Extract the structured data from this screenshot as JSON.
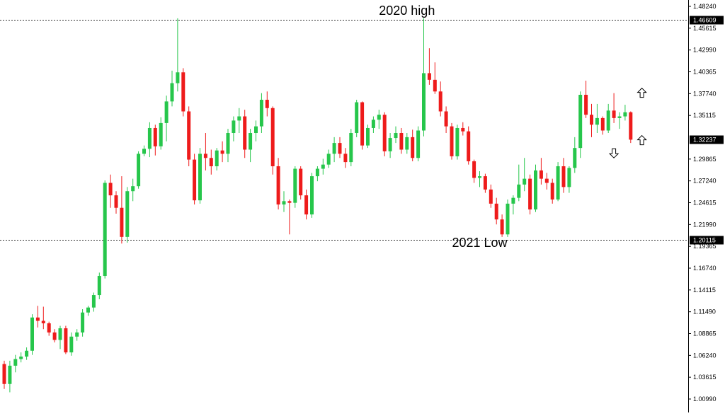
{
  "chart_data": {
    "type": "candlestick",
    "ylim": [
      1.0099,
      1.4824
    ],
    "y_ticks": [
      "1.48240",
      "1.45615",
      "1.42990",
      "1.40365",
      "1.37740",
      "1.35115",
      "1.29865",
      "1.27240",
      "1.24615",
      "1.21990",
      "1.19365",
      "1.16740",
      "1.14115",
      "1.11490",
      "1.08865",
      "1.06240",
      "1.03615",
      "1.00990"
    ],
    "levels": [
      {
        "value": 1.46609,
        "label": "1.46609",
        "style": "dotted"
      },
      {
        "value": 1.20115,
        "label": "1.20115",
        "style": "dotted"
      }
    ],
    "current_price": {
      "value": 1.32237,
      "label": "1.32237"
    },
    "annotations": [
      {
        "text": "2020 high",
        "x_index": 72,
        "y": 1.472
      },
      {
        "text": "2021 Low",
        "x_index": 85,
        "y": 1.193
      }
    ],
    "arrows": [
      {
        "direction": "up",
        "x_index": 114,
        "y": 1.378
      },
      {
        "direction": "up",
        "x_index": 114,
        "y": 1.321
      },
      {
        "direction": "down",
        "x_index": 109,
        "y": 1.306
      }
    ],
    "colors": {
      "up": "#26c64b",
      "down": "#ee1b1b",
      "level": "#333333",
      "label_bg": "#000000",
      "grid": "#ffffff"
    },
    "candles": [
      [
        1.052,
        1.056,
        1.022,
        1.028
      ],
      [
        1.028,
        1.056,
        1.018,
        1.05
      ],
      [
        1.05,
        1.063,
        1.042,
        1.058
      ],
      [
        1.058,
        1.066,
        1.054,
        1.061
      ],
      [
        1.061,
        1.072,
        1.057,
        1.068
      ],
      [
        1.068,
        1.112,
        1.063,
        1.108
      ],
      [
        1.108,
        1.122,
        1.096,
        1.104
      ],
      [
        1.104,
        1.121,
        1.094,
        1.101
      ],
      [
        1.101,
        1.103,
        1.086,
        1.09
      ],
      [
        1.09,
        1.094,
        1.078,
        1.081
      ],
      [
        1.081,
        1.098,
        1.07,
        1.095
      ],
      [
        1.095,
        1.098,
        1.064,
        1.066
      ],
      [
        1.066,
        1.09,
        1.062,
        1.085
      ],
      [
        1.085,
        1.094,
        1.08,
        1.09
      ],
      [
        1.09,
        1.118,
        1.085,
        1.114
      ],
      [
        1.114,
        1.122,
        1.11,
        1.12
      ],
      [
        1.12,
        1.138,
        1.115,
        1.135
      ],
      [
        1.135,
        1.162,
        1.13,
        1.158
      ],
      [
        1.158,
        1.273,
        1.155,
        1.27
      ],
      [
        1.27,
        1.28,
        1.24,
        1.255
      ],
      [
        1.255,
        1.26,
        1.233,
        1.24
      ],
      [
        1.24,
        1.278,
        1.197,
        1.205
      ],
      [
        1.205,
        1.265,
        1.198,
        1.26
      ],
      [
        1.26,
        1.275,
        1.248,
        1.266
      ],
      [
        1.266,
        1.308,
        1.263,
        1.305
      ],
      [
        1.305,
        1.315,
        1.302,
        1.311
      ],
      [
        1.311,
        1.343,
        1.301,
        1.336
      ],
      [
        1.336,
        1.34,
        1.303,
        1.314
      ],
      [
        1.314,
        1.349,
        1.31,
        1.342
      ],
      [
        1.342,
        1.375,
        1.32,
        1.368
      ],
      [
        1.368,
        1.405,
        1.362,
        1.39
      ],
      [
        1.39,
        1.468,
        1.38,
        1.403
      ],
      [
        1.403,
        1.408,
        1.35,
        1.356
      ],
      [
        1.356,
        1.362,
        1.29,
        1.298
      ],
      [
        1.298,
        1.305,
        1.244,
        1.249
      ],
      [
        1.249,
        1.312,
        1.245,
        1.305
      ],
      [
        1.305,
        1.33,
        1.285,
        1.3
      ],
      [
        1.3,
        1.31,
        1.28,
        1.29
      ],
      [
        1.29,
        1.312,
        1.285,
        1.309
      ],
      [
        1.309,
        1.32,
        1.295,
        1.305
      ],
      [
        1.305,
        1.335,
        1.295,
        1.33
      ],
      [
        1.33,
        1.35,
        1.32,
        1.345
      ],
      [
        1.345,
        1.36,
        1.33,
        1.35
      ],
      [
        1.35,
        1.358,
        1.3,
        1.31
      ],
      [
        1.31,
        1.335,
        1.295,
        1.33
      ],
      [
        1.33,
        1.345,
        1.32,
        1.338
      ],
      [
        1.338,
        1.378,
        1.33,
        1.37
      ],
      [
        1.37,
        1.38,
        1.35,
        1.36
      ],
      [
        1.36,
        1.362,
        1.28,
        1.29
      ],
      [
        1.29,
        1.3,
        1.238,
        1.244
      ],
      [
        1.244,
        1.26,
        1.235,
        1.248
      ],
      [
        1.248,
        1.25,
        1.208,
        1.246
      ],
      [
        1.246,
        1.29,
        1.24,
        1.287
      ],
      [
        1.287,
        1.29,
        1.25,
        1.255
      ],
      [
        1.255,
        1.262,
        1.226,
        1.232
      ],
      [
        1.232,
        1.282,
        1.228,
        1.278
      ],
      [
        1.278,
        1.29,
        1.272,
        1.287
      ],
      [
        1.287,
        1.299,
        1.28,
        1.292
      ],
      [
        1.292,
        1.31,
        1.288,
        1.305
      ],
      [
        1.305,
        1.325,
        1.295,
        1.318
      ],
      [
        1.318,
        1.325,
        1.3,
        1.305
      ],
      [
        1.305,
        1.312,
        1.288,
        1.295
      ],
      [
        1.295,
        1.335,
        1.29,
        1.33
      ],
      [
        1.33,
        1.37,
        1.325,
        1.367
      ],
      [
        1.367,
        1.368,
        1.31,
        1.315
      ],
      [
        1.315,
        1.34,
        1.312,
        1.336
      ],
      [
        1.336,
        1.35,
        1.33,
        1.346
      ],
      [
        1.346,
        1.358,
        1.335,
        1.352
      ],
      [
        1.352,
        1.355,
        1.302,
        1.308
      ],
      [
        1.308,
        1.33,
        1.3,
        1.324
      ],
      [
        1.324,
        1.338,
        1.318,
        1.33
      ],
      [
        1.33,
        1.336,
        1.305,
        1.31
      ],
      [
        1.31,
        1.33,
        1.305,
        1.325
      ],
      [
        1.325,
        1.334,
        1.296,
        1.3
      ],
      [
        1.3,
        1.338,
        1.296,
        1.333
      ],
      [
        1.333,
        1.468,
        1.326,
        1.402
      ],
      [
        1.402,
        1.432,
        1.388,
        1.394
      ],
      [
        1.394,
        1.415,
        1.377,
        1.38
      ],
      [
        1.38,
        1.392,
        1.35,
        1.356
      ],
      [
        1.356,
        1.362,
        1.33,
        1.338
      ],
      [
        1.338,
        1.342,
        1.298,
        1.302
      ],
      [
        1.302,
        1.34,
        1.298,
        1.336
      ],
      [
        1.336,
        1.343,
        1.327,
        1.332
      ],
      [
        1.332,
        1.338,
        1.292,
        1.296
      ],
      [
        1.296,
        1.298,
        1.27,
        1.276
      ],
      [
        1.276,
        1.284,
        1.265,
        1.278
      ],
      [
        1.278,
        1.281,
        1.258,
        1.262
      ],
      [
        1.262,
        1.268,
        1.24,
        1.245
      ],
      [
        1.245,
        1.252,
        1.22,
        1.226
      ],
      [
        1.226,
        1.232,
        1.205,
        1.208
      ],
      [
        1.208,
        1.25,
        1.205,
        1.245
      ],
      [
        1.245,
        1.255,
        1.232,
        1.252
      ],
      [
        1.252,
        1.292,
        1.248,
        1.268
      ],
      [
        1.268,
        1.3,
        1.26,
        1.275
      ],
      [
        1.275,
        1.28,
        1.232,
        1.238
      ],
      [
        1.238,
        1.292,
        1.235,
        1.285
      ],
      [
        1.285,
        1.3,
        1.268,
        1.275
      ],
      [
        1.275,
        1.282,
        1.262,
        1.27
      ],
      [
        1.27,
        1.275,
        1.245,
        1.25
      ],
      [
        1.25,
        1.295,
        1.248,
        1.29
      ],
      [
        1.29,
        1.3,
        1.258,
        1.265
      ],
      [
        1.265,
        1.29,
        1.258,
        1.288
      ],
      [
        1.288,
        1.325,
        1.282,
        1.312
      ],
      [
        1.312,
        1.38,
        1.3,
        1.376
      ],
      [
        1.376,
        1.393,
        1.348,
        1.352
      ],
      [
        1.352,
        1.365,
        1.325,
        1.34
      ],
      [
        1.34,
        1.365,
        1.33,
        1.348
      ],
      [
        1.348,
        1.35,
        1.328,
        1.333
      ],
      [
        1.333,
        1.365,
        1.33,
        1.357
      ],
      [
        1.357,
        1.378,
        1.342,
        1.348
      ],
      [
        1.348,
        1.355,
        1.335,
        1.35
      ],
      [
        1.35,
        1.364,
        1.345,
        1.355
      ],
      [
        1.355,
        1.356,
        1.318,
        1.322
      ]
    ]
  }
}
